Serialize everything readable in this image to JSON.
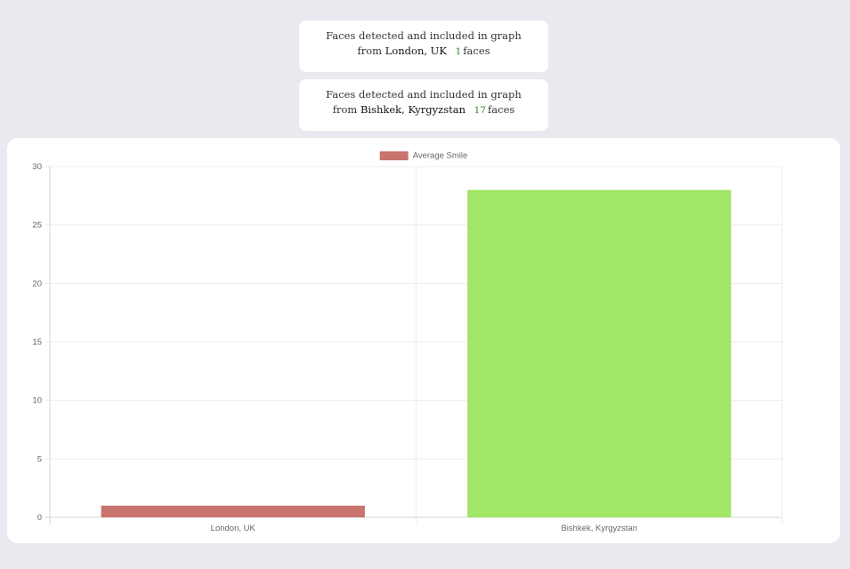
{
  "cards": [
    {
      "line1": "Faces detected and included in graph",
      "from": "from",
      "location": "London, UK",
      "count": "1",
      "unit": "faces"
    },
    {
      "line1": "Faces detected and included in graph",
      "from": "from",
      "location": "Bishkek, Kyrgyzstan",
      "count": "17",
      "unit": "faces"
    }
  ],
  "chart_data": {
    "type": "bar",
    "categories": [
      "London, UK",
      "Bishkek, Kyrgyzstan"
    ],
    "series": [
      {
        "name": "Average Smile",
        "values": [
          1,
          28
        ],
        "colors": [
          "#c9746c",
          "#a1e667"
        ]
      }
    ],
    "ylim": [
      0,
      30
    ],
    "yticks": [
      "0",
      "5",
      "10",
      "15",
      "20",
      "25",
      "30"
    ],
    "grid": true,
    "legend": "top-center"
  },
  "colors": {
    "background": "#e8eaf0",
    "panel": "#ffffff",
    "count": "#2e8b2e"
  }
}
